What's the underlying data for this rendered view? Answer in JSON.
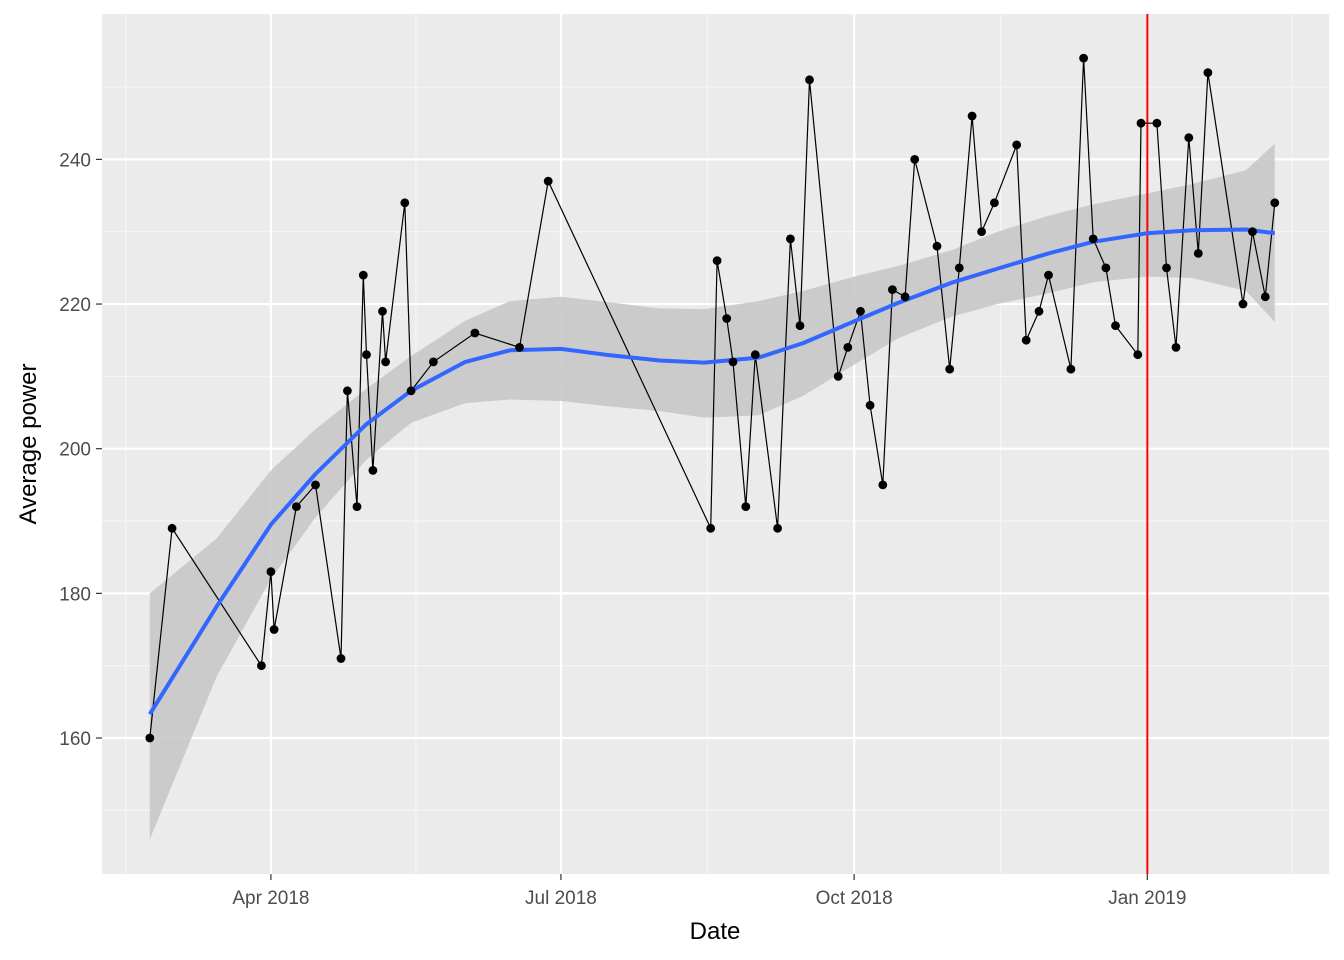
{
  "chart_data": {
    "type": "line",
    "title": "",
    "xlabel": "Date",
    "ylabel": "Average power",
    "x_ticks": [
      {
        "label": "Apr 2018",
        "date": "2018-04-01"
      },
      {
        "label": "Jul 2018",
        "date": "2018-07-01"
      },
      {
        "label": "Oct 2018",
        "date": "2018-10-01"
      },
      {
        "label": "Jan 2019",
        "date": "2019-01-01"
      }
    ],
    "y_ticks": [
      160,
      180,
      200,
      220,
      240
    ],
    "xlim": [
      "2018-02-07",
      "2019-02-27"
    ],
    "ylim": [
      141.2,
      260.1
    ],
    "grid": true,
    "vline": {
      "date": "2019-01-01",
      "color": "#ff0000"
    },
    "colors": {
      "panel": "#ebebeb",
      "grid_major": "#ffffff",
      "grid_minor": "#f5f5f5",
      "points": "#000000",
      "line": "#000000",
      "smooth": "#3366ff",
      "ribbon": "#c8c8c8"
    },
    "series": [
      {
        "type": "line+points",
        "points": [
          [
            "2018-02-22",
            160
          ],
          [
            "2018-03-01",
            189
          ],
          [
            "2018-03-29",
            170
          ],
          [
            "2018-04-01",
            183
          ],
          [
            "2018-04-02",
            175
          ],
          [
            "2018-04-09",
            192
          ],
          [
            "2018-04-15",
            195
          ],
          [
            "2018-04-23",
            171
          ],
          [
            "2018-04-25",
            208
          ],
          [
            "2018-04-28",
            192
          ],
          [
            "2018-04-30",
            224
          ],
          [
            "2018-05-01",
            213
          ],
          [
            "2018-05-03",
            197
          ],
          [
            "2018-05-06",
            219
          ],
          [
            "2018-05-07",
            212
          ],
          [
            "2018-05-13",
            234
          ],
          [
            "2018-05-15",
            208
          ],
          [
            "2018-05-22",
            212
          ],
          [
            "2018-06-04",
            216
          ],
          [
            "2018-06-18",
            214
          ],
          [
            "2018-06-27",
            237
          ],
          [
            "2018-08-17",
            189
          ],
          [
            "2018-08-19",
            226
          ],
          [
            "2018-08-22",
            218
          ],
          [
            "2018-08-24",
            212
          ],
          [
            "2018-08-28",
            192
          ],
          [
            "2018-08-31",
            213
          ],
          [
            "2018-09-07",
            189
          ],
          [
            "2018-09-11",
            229
          ],
          [
            "2018-09-14",
            217
          ],
          [
            "2018-09-17",
            251
          ],
          [
            "2018-09-26",
            210
          ],
          [
            "2018-09-29",
            214
          ],
          [
            "2018-10-03",
            219
          ],
          [
            "2018-10-06",
            206
          ],
          [
            "2018-10-10",
            195
          ],
          [
            "2018-10-13",
            222
          ],
          [
            "2018-10-17",
            221
          ],
          [
            "2018-10-20",
            240
          ],
          [
            "2018-10-27",
            228
          ],
          [
            "2018-10-31",
            211
          ],
          [
            "2018-11-03",
            225
          ],
          [
            "2018-11-07",
            246
          ],
          [
            "2018-11-10",
            230
          ],
          [
            "2018-11-14",
            234
          ],
          [
            "2018-11-21",
            242
          ],
          [
            "2018-11-24",
            215
          ],
          [
            "2018-11-28",
            219
          ],
          [
            "2018-12-01",
            224
          ],
          [
            "2018-12-08",
            211
          ],
          [
            "2018-12-12",
            254
          ],
          [
            "2018-12-15",
            229
          ],
          [
            "2018-12-19",
            225
          ],
          [
            "2018-12-22",
            217
          ],
          [
            "2018-12-29",
            213
          ],
          [
            "2018-12-30",
            245
          ],
          [
            "2019-01-04",
            245
          ],
          [
            "2019-01-07",
            225
          ],
          [
            "2019-01-10",
            214
          ],
          [
            "2019-01-14",
            243
          ],
          [
            "2019-01-17",
            227
          ],
          [
            "2019-01-20",
            252
          ],
          [
            "2019-01-31",
            220
          ],
          [
            "2019-02-03",
            230
          ],
          [
            "2019-02-07",
            221
          ],
          [
            "2019-02-10",
            234
          ]
        ]
      },
      {
        "type": "smooth",
        "points": [
          [
            "2018-02-22",
            163.3
          ],
          [
            "2018-03-15",
            178.2
          ],
          [
            "2018-04-01",
            189.5
          ],
          [
            "2018-04-15",
            196.5
          ],
          [
            "2018-05-01",
            203.4
          ],
          [
            "2018-05-15",
            208.0
          ],
          [
            "2018-06-01",
            212.0
          ],
          [
            "2018-06-15",
            213.6
          ],
          [
            "2018-07-01",
            213.8
          ],
          [
            "2018-07-15",
            213.0
          ],
          [
            "2018-08-01",
            212.2
          ],
          [
            "2018-08-15",
            211.9
          ],
          [
            "2018-09-01",
            212.6
          ],
          [
            "2018-09-15",
            214.6
          ],
          [
            "2018-10-01",
            217.6
          ],
          [
            "2018-10-15",
            220.2
          ],
          [
            "2018-11-01",
            223.0
          ],
          [
            "2018-11-15",
            224.9
          ],
          [
            "2018-12-01",
            227.0
          ],
          [
            "2018-12-15",
            228.6
          ],
          [
            "2019-01-01",
            229.8
          ],
          [
            "2019-01-15",
            230.2
          ],
          [
            "2019-02-01",
            230.3
          ],
          [
            "2019-02-10",
            229.8
          ]
        ],
        "lower": [
          146.0,
          168.5,
          182.0,
          190.5,
          198.5,
          203.6,
          206.3,
          206.8,
          206.6,
          205.9,
          205.2,
          204.3,
          204.6,
          207.3,
          211.6,
          215.3,
          218.3,
          220.0,
          221.5,
          223.0,
          223.8,
          223.6,
          221.8,
          217.5
        ],
        "upper": [
          180.0,
          187.6,
          197.0,
          202.7,
          208.3,
          212.8,
          217.7,
          220.4,
          221.0,
          220.3,
          219.4,
          219.3,
          220.4,
          221.8,
          223.8,
          225.3,
          227.5,
          230.0,
          232.2,
          233.8,
          235.3,
          236.6,
          238.5,
          242.2
        ]
      }
    ]
  }
}
